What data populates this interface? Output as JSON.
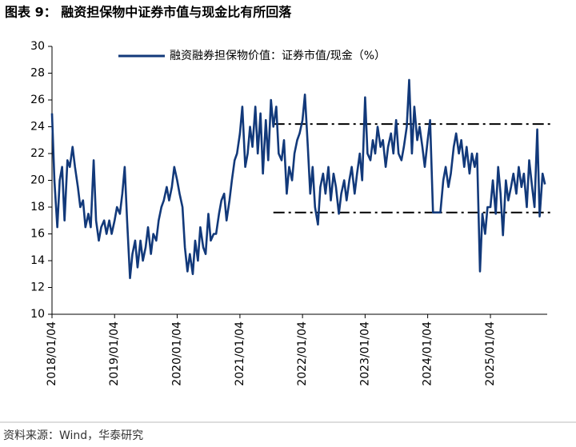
{
  "chart_data": {
    "type": "line",
    "title": "图表 9：  融资担保物中证券市值与现金比有所回落",
    "source": "资料来源：Wind，华泰研究",
    "x": [
      "2018/01/04",
      "2018/01/18",
      "2018/02/04",
      "2018/02/18",
      "2018/03/04",
      "2018/03/18",
      "2018/04/04",
      "2018/04/18",
      "2018/05/04",
      "2018/05/18",
      "2018/06/04",
      "2018/06/18",
      "2018/07/04",
      "2018/07/18",
      "2018/08/04",
      "2018/08/18",
      "2018/09/04",
      "2018/09/18",
      "2018/10/04",
      "2018/10/18",
      "2018/11/04",
      "2018/11/18",
      "2018/12/04",
      "2018/12/18",
      "2019/01/04",
      "2019/01/18",
      "2019/02/04",
      "2019/02/18",
      "2019/03/04",
      "2019/03/18",
      "2019/04/04",
      "2019/04/18",
      "2019/05/04",
      "2019/05/18",
      "2019/06/04",
      "2019/06/18",
      "2019/07/04",
      "2019/07/18",
      "2019/08/04",
      "2019/08/18",
      "2019/09/04",
      "2019/09/18",
      "2019/10/04",
      "2019/10/18",
      "2019/11/04",
      "2019/11/18",
      "2019/12/04",
      "2019/12/18",
      "2020/01/04",
      "2020/01/18",
      "2020/02/04",
      "2020/02/18",
      "2020/03/04",
      "2020/03/18",
      "2020/04/04",
      "2020/04/18",
      "2020/05/04",
      "2020/05/18",
      "2020/06/04",
      "2020/06/18",
      "2020/07/04",
      "2020/07/18",
      "2020/08/04",
      "2020/08/18",
      "2020/09/04",
      "2020/09/18",
      "2020/10/04",
      "2020/10/18",
      "2020/11/04",
      "2020/11/18",
      "2020/12/04",
      "2020/12/18",
      "2021/01/04",
      "2021/01/18",
      "2021/02/04",
      "2021/02/18",
      "2021/03/04",
      "2021/03/18",
      "2021/04/04",
      "2021/04/18",
      "2021/05/04",
      "2021/05/18",
      "2021/06/04",
      "2021/06/18",
      "2021/07/04",
      "2021/07/18",
      "2021/08/04",
      "2021/08/18",
      "2021/09/04",
      "2021/09/18",
      "2021/10/04",
      "2021/10/18",
      "2021/11/04",
      "2021/11/18",
      "2021/12/04",
      "2021/12/18",
      "2022/01/04",
      "2022/01/18",
      "2022/02/04",
      "2022/02/18",
      "2022/03/04",
      "2022/03/18",
      "2022/04/04",
      "2022/04/18",
      "2022/05/04",
      "2022/05/18",
      "2022/06/04",
      "2022/06/18",
      "2022/07/04",
      "2022/07/18",
      "2022/08/04",
      "2022/08/18",
      "2022/09/04",
      "2022/09/18",
      "2022/10/04",
      "2022/10/18",
      "2022/11/04",
      "2022/11/18",
      "2022/12/04",
      "2022/12/18",
      "2023/01/04",
      "2023/01/18",
      "2023/02/04",
      "2023/02/18",
      "2023/03/04",
      "2023/03/18",
      "2023/04/04",
      "2023/04/18",
      "2023/05/04",
      "2023/05/18",
      "2023/06/04",
      "2023/06/18",
      "2023/07/04",
      "2023/07/18",
      "2023/08/04",
      "2023/08/18",
      "2023/09/04",
      "2023/09/18",
      "2023/10/04",
      "2023/10/18",
      "2023/11/04",
      "2023/11/18",
      "2023/12/04",
      "2023/12/18",
      "2024/01/04",
      "2024/01/18",
      "2024/02/04",
      "2024/02/18",
      "2024/03/04",
      "2024/03/18",
      "2024/04/04",
      "2024/04/18",
      "2024/05/04",
      "2024/05/18",
      "2024/06/04",
      "2024/06/18",
      "2024/07/04",
      "2024/07/18",
      "2024/08/04",
      "2024/08/18",
      "2024/09/04",
      "2024/09/18",
      "2024/10/04",
      "2024/10/18",
      "2024/11/04",
      "2024/11/18",
      "2024/12/04",
      "2024/12/18",
      "2025/01/04",
      "2025/01/18",
      "2025/02/04",
      "2025/02/18",
      "2025/03/04",
      "2025/03/18",
      "2025/04/04",
      "2025/04/18",
      "2025/05/04",
      "2025/05/18",
      "2025/06/04",
      "2025/06/18",
      "2025/07/04",
      "2025/07/18",
      "2025/08/04",
      "2025/08/18",
      "2025/09/04",
      "2025/09/18",
      "2025/10/04",
      "2025/10/18",
      "2025/11/04",
      "2025/11/18"
    ],
    "series": [
      {
        "name": "融资融券担保物价值：证券市值/现金（%）",
        "color": "#12397a",
        "values": [
          25,
          20,
          16.5,
          20,
          21,
          17,
          21.5,
          21,
          22.5,
          21,
          19.5,
          18,
          18.5,
          16.5,
          17.5,
          16.5,
          21.5,
          17,
          15.5,
          16.5,
          17,
          16,
          17,
          16,
          17,
          18,
          17.5,
          19,
          21,
          17,
          12.7,
          14.5,
          15.5,
          13.5,
          15.5,
          14,
          15,
          16.5,
          14.5,
          16,
          15.5,
          17,
          18,
          18.5,
          19.5,
          18.5,
          19.5,
          21,
          20,
          19,
          18,
          15,
          13.2,
          14.5,
          13,
          15.5,
          14,
          16.5,
          15,
          14.5,
          17.5,
          15.5,
          16,
          16,
          17.5,
          18.5,
          19,
          17,
          18.5,
          20,
          21.5,
          22,
          23.5,
          25.5,
          21,
          22,
          24,
          22.5,
          25.5,
          22,
          25,
          20.5,
          24.5,
          21.5,
          26,
          24,
          25.5,
          22,
          21.5,
          23,
          19,
          21,
          20,
          22,
          23,
          23.5,
          24.5,
          26.4,
          22.5,
          19,
          21,
          18,
          16.7,
          19.5,
          20.5,
          19,
          21,
          18.5,
          20.5,
          19.5,
          17.5,
          19,
          20,
          18.5,
          20,
          21,
          19,
          20.5,
          22,
          20,
          26.2,
          22,
          21.5,
          23,
          22,
          24,
          22.5,
          23,
          21,
          22.5,
          23.5,
          22,
          24.5,
          22,
          21.5,
          22.5,
          24,
          27.5,
          22,
          25.5,
          23,
          24,
          22.5,
          21,
          23,
          24.5,
          17.6,
          17.6,
          17.6,
          17.6,
          20,
          21,
          19.5,
          20.5,
          22.5,
          23.5,
          22,
          23,
          21,
          22.5,
          20.5,
          22,
          21,
          22,
          13.2,
          17.5,
          16,
          18,
          18,
          20,
          17.5,
          21,
          19,
          15.9,
          20,
          18.5,
          19.5,
          20.5,
          19,
          21,
          19.5,
          20.5,
          18,
          21.5,
          19.5,
          18,
          23.8,
          17.3,
          20.5,
          19.7
        ]
      }
    ],
    "reference_lines": [
      {
        "value": 24.2,
        "start": "2021/07/18"
      },
      {
        "value": 17.6,
        "start": "2021/07/18"
      }
    ],
    "xlim": [
      "2018/01/04",
      "2025/12/01"
    ],
    "xticks": [
      "2018/01/04",
      "2019/01/04",
      "2020/01/04",
      "2021/01/04",
      "2022/01/04",
      "2023/01/04",
      "2024/01/04",
      "2025/01/04"
    ],
    "ylim": [
      10,
      30
    ],
    "yticks": [
      10,
      12,
      14,
      16,
      18,
      20,
      22,
      24,
      26,
      28,
      30
    ],
    "grid": false,
    "legend": "top-left"
  }
}
